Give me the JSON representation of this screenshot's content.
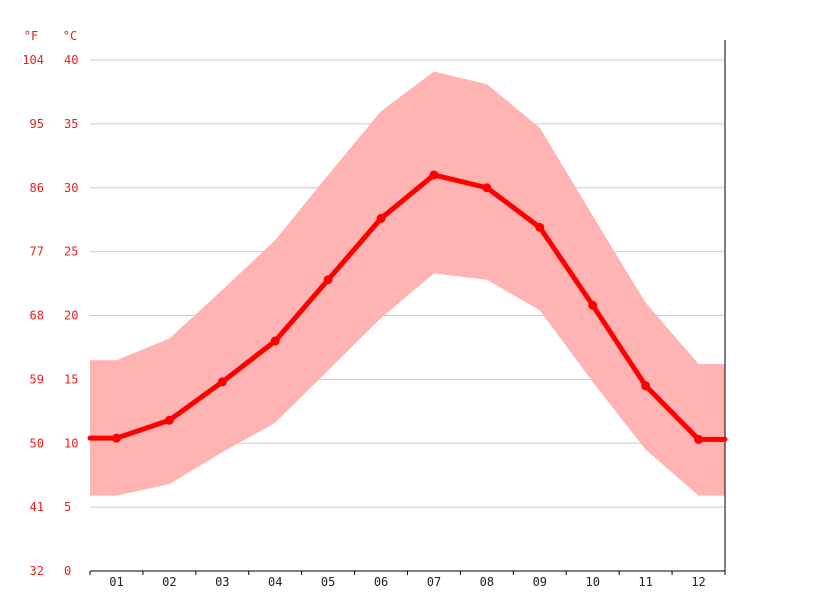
{
  "chart_data": {
    "type": "line",
    "unit_labels": {
      "fahrenheit": "°F",
      "celsius": "°C"
    },
    "categories": [
      "01",
      "02",
      "03",
      "04",
      "05",
      "06",
      "07",
      "08",
      "09",
      "10",
      "11",
      "12"
    ],
    "series": [
      {
        "values": [
          10.4,
          11.8,
          14.8,
          18.0,
          22.8,
          27.6,
          31.0,
          30.0,
          26.9,
          20.8,
          14.5,
          10.3
        ]
      }
    ],
    "band": {
      "upper": [
        16.5,
        18.2,
        22.0,
        25.9,
        31.0,
        36.0,
        39.1,
        38.1,
        34.7,
        27.8,
        21.0,
        16.2
      ],
      "lower": [
        5.9,
        6.8,
        9.3,
        11.6,
        15.7,
        19.8,
        23.3,
        22.8,
        20.4,
        14.8,
        9.5,
        5.9
      ]
    },
    "y_ticks_c": [
      "0",
      "5",
      "10",
      "15",
      "20",
      "25",
      "30",
      "35",
      "40"
    ],
    "y_ticks_f": [
      "32",
      "41",
      "50",
      "59",
      "68",
      "77",
      "86",
      "95",
      "104"
    ],
    "ylim": [
      0,
      40
    ],
    "grid": true,
    "colors": {
      "line": "#ff0000",
      "band": "#ffb3b3",
      "label": "#e8211f",
      "grid": "#cccccc"
    }
  }
}
